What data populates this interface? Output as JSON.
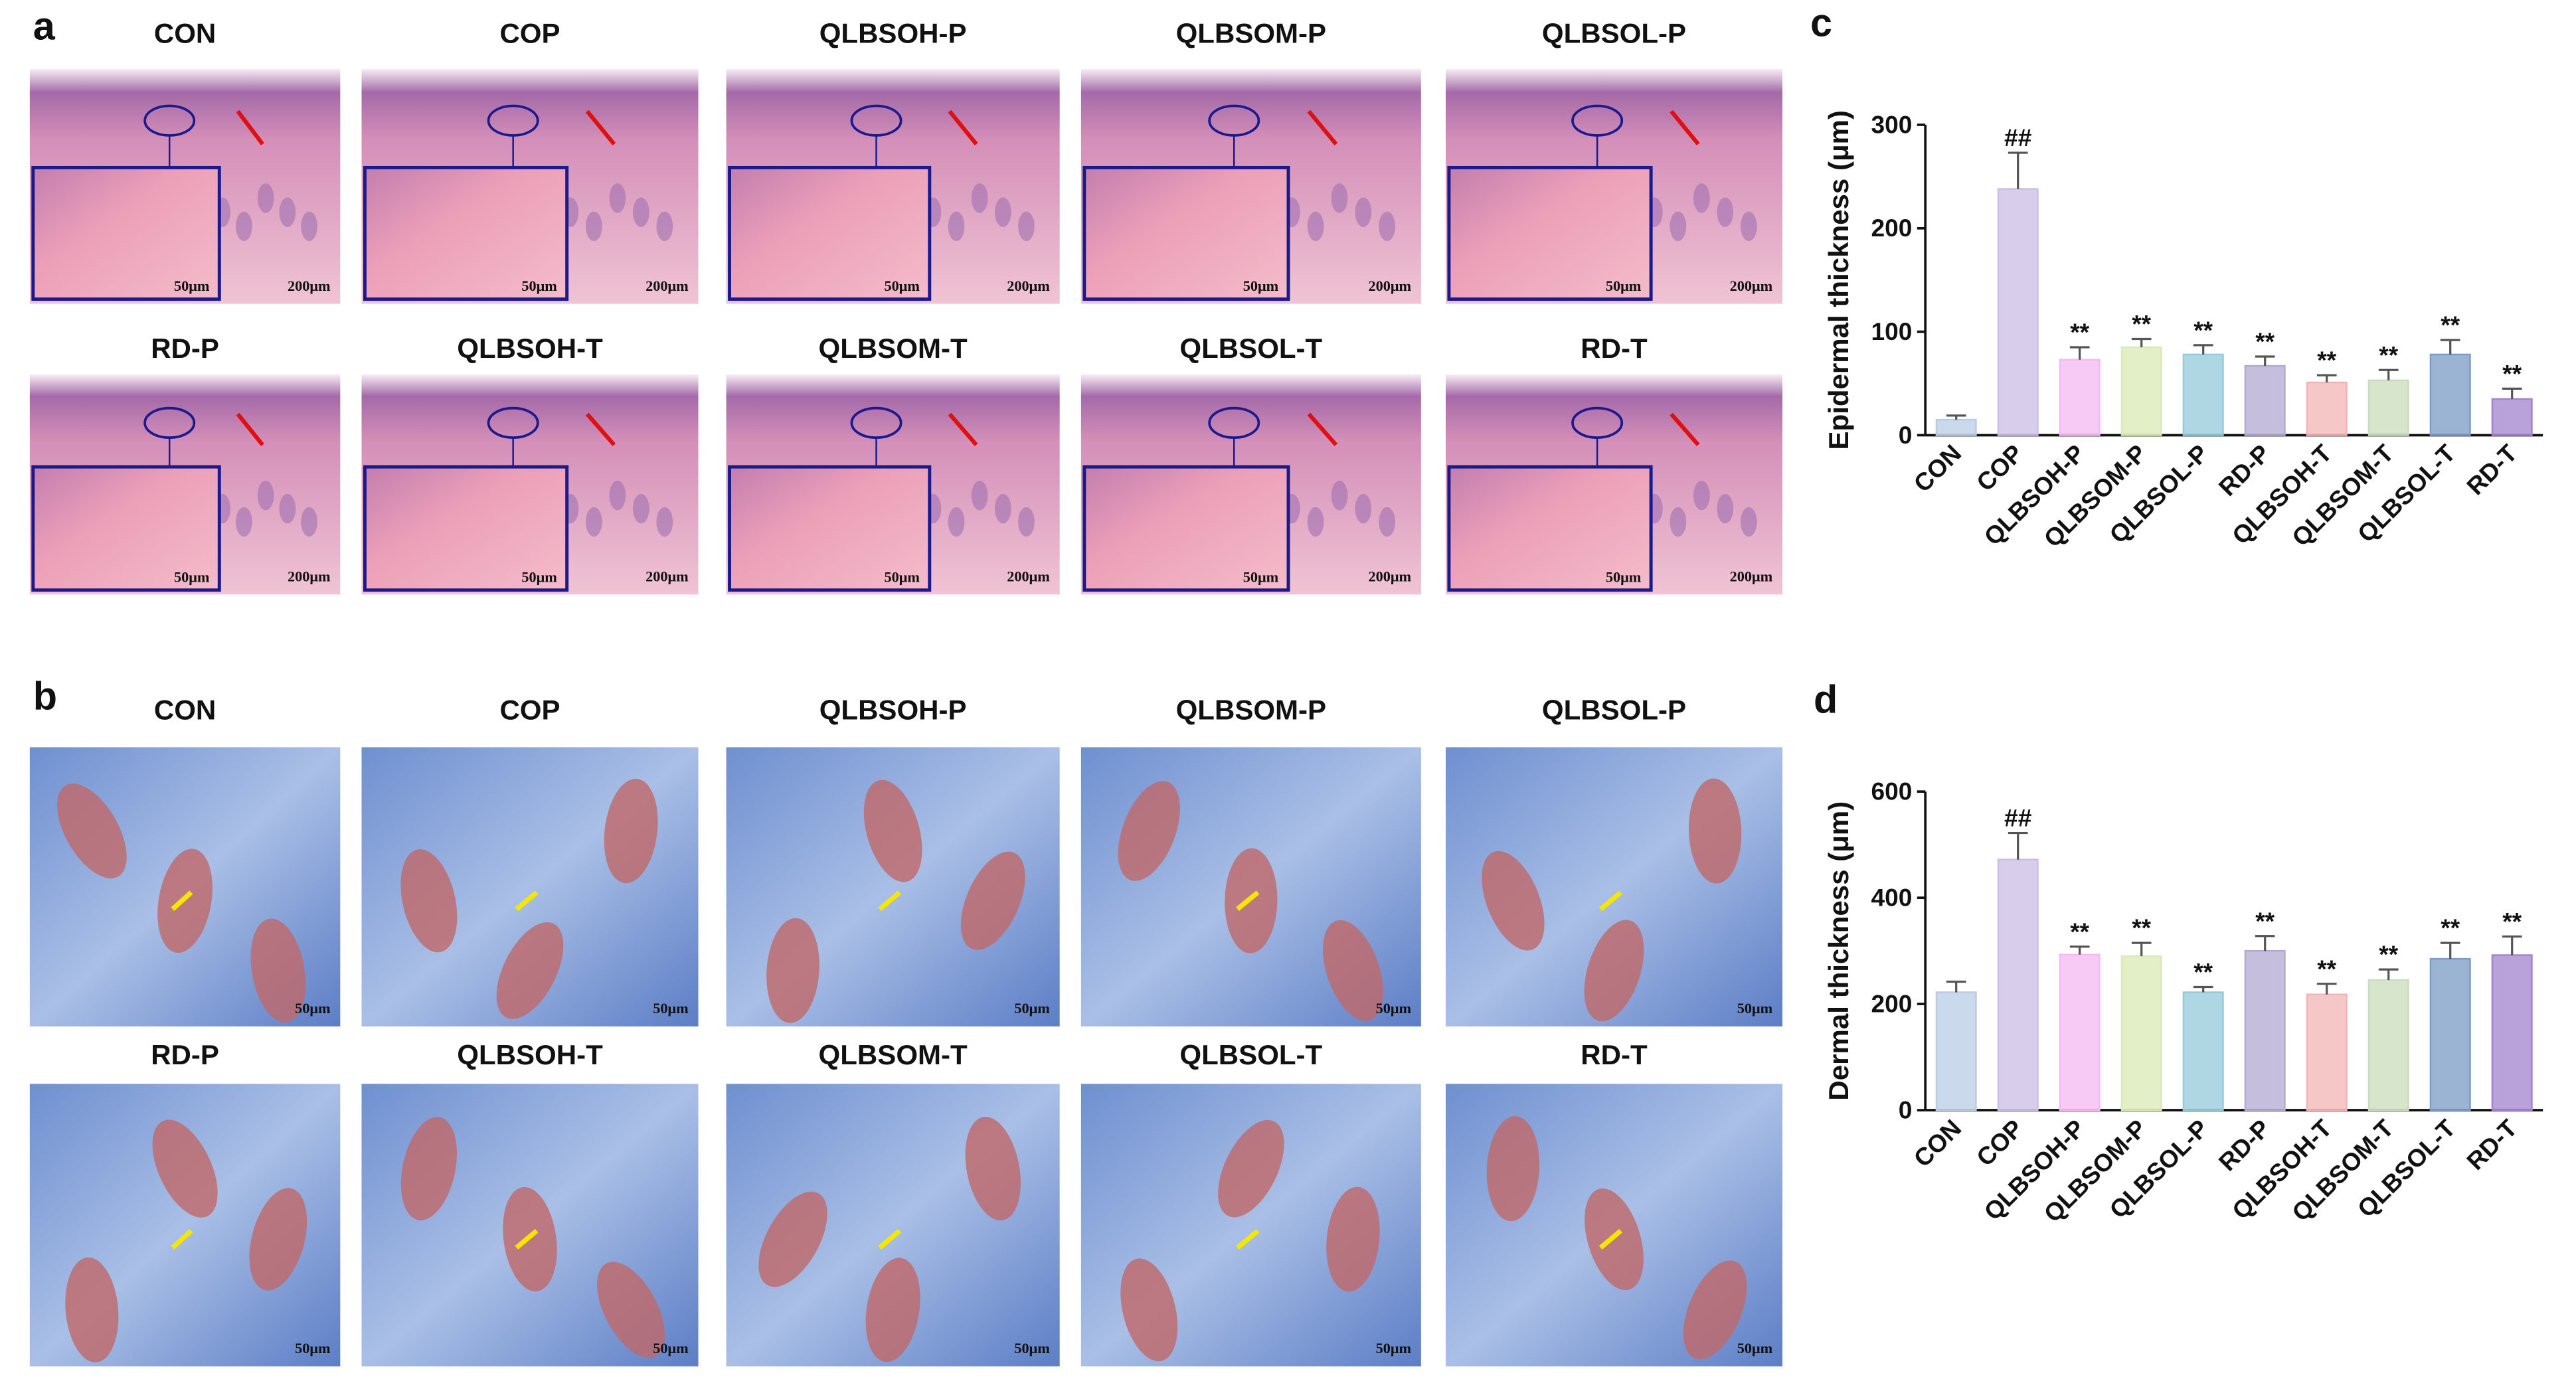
{
  "panels": {
    "a": {
      "label": "a",
      "images": [
        {
          "title": "CON",
          "scale_labels": [
            "50μm",
            "200μm"
          ]
        },
        {
          "title": "COP",
          "scale_labels": [
            "50μm",
            "200μm"
          ]
        },
        {
          "title": "QLBSOH-P",
          "scale_labels": [
            "50μm",
            "200μm"
          ]
        },
        {
          "title": "QLBSOM-P",
          "scale_labels": [
            "50μm",
            "200μm"
          ]
        },
        {
          "title": "QLBSOL-P",
          "scale_labels": [
            "50μm",
            "200μm"
          ]
        },
        {
          "title": "RD-P",
          "scale_labels": [
            "50μm",
            "200μm"
          ]
        },
        {
          "title": "QLBSOH-T",
          "scale_labels": [
            "50μm",
            "200μm"
          ]
        },
        {
          "title": "QLBSOM-T",
          "scale_labels": [
            "50μm",
            "200μm"
          ]
        },
        {
          "title": "QLBSOL-T",
          "scale_labels": [
            "50μm",
            "200μm"
          ]
        },
        {
          "title": "RD-T",
          "scale_labels": [
            "50μm",
            "200μm"
          ]
        }
      ]
    },
    "b": {
      "label": "b",
      "images": [
        {
          "title": "CON",
          "scale_labels": [
            "50μm"
          ]
        },
        {
          "title": "COP",
          "scale_labels": [
            "50μm"
          ]
        },
        {
          "title": "QLBSOH-P",
          "scale_labels": [
            "50μm"
          ]
        },
        {
          "title": "QLBSOM-P",
          "scale_labels": [
            "50μm"
          ]
        },
        {
          "title": "QLBSOL-P",
          "scale_labels": [
            "50μm"
          ]
        },
        {
          "title": "RD-P",
          "scale_labels": [
            "50μm"
          ]
        },
        {
          "title": "QLBSOH-T",
          "scale_labels": [
            "50μm"
          ]
        },
        {
          "title": "QLBSOM-T",
          "scale_labels": [
            "50μm"
          ]
        },
        {
          "title": "QLBSOL-T",
          "scale_labels": [
            "50μm"
          ]
        },
        {
          "title": "RD-T",
          "scale_labels": [
            "50μm"
          ]
        }
      ]
    }
  },
  "chart_data": [
    {
      "type": "bar",
      "panel_label": "c",
      "ylabel": "Epidermal thickness (μm)",
      "categories": [
        "CON",
        "COP",
        "QLBSOH-P",
        "QLBSOM-P",
        "QLBSOL-P",
        "RD-P",
        "QLBSOH-T",
        "QLBSOM-T",
        "QLBSOL-T",
        "RD-T"
      ],
      "values": [
        15,
        238,
        73,
        85,
        78,
        67,
        51,
        53,
        78,
        35
      ],
      "errors": [
        4,
        35,
        12,
        8,
        9,
        9,
        7,
        10,
        14,
        10
      ],
      "annotations": [
        null,
        "##",
        "**",
        "**",
        "**",
        "**",
        "**",
        "**",
        "**",
        "**"
      ],
      "colors": [
        "#b8cce4",
        "#cbbde6",
        "#f4b8f2",
        "#d9eab4",
        "#94c9d9",
        "#b2aad2",
        "#f2b4b4",
        "#cadcbc",
        "#7b9bc4",
        "#a283cc"
      ],
      "ylim": [
        0,
        300
      ],
      "yticks": [
        0,
        100,
        200,
        300
      ]
    },
    {
      "type": "bar",
      "panel_label": "d",
      "ylabel": "Dermal thickness (μm)",
      "categories": [
        "CON",
        "COP",
        "QLBSOH-P",
        "QLBSOM-P",
        "QLBSOL-P",
        "RD-P",
        "QLBSOH-T",
        "QLBSOM-T",
        "QLBSOL-T",
        "RD-T"
      ],
      "values": [
        222,
        472,
        293,
        290,
        222,
        300,
        218,
        245,
        285,
        292
      ],
      "errors": [
        20,
        50,
        15,
        25,
        10,
        28,
        20,
        20,
        30,
        35
      ],
      "annotations": [
        null,
        "##",
        "**",
        "**",
        "**",
        "**",
        "**",
        "**",
        "**",
        "**"
      ],
      "colors": [
        "#b8cce4",
        "#cbbde6",
        "#f4b8f2",
        "#d9eab4",
        "#94c9d9",
        "#b2aad2",
        "#f2b4b4",
        "#cadcbc",
        "#7b9bc4",
        "#a283cc"
      ],
      "ylim": [
        0,
        600
      ],
      "yticks": [
        0,
        200,
        400,
        600
      ]
    }
  ]
}
